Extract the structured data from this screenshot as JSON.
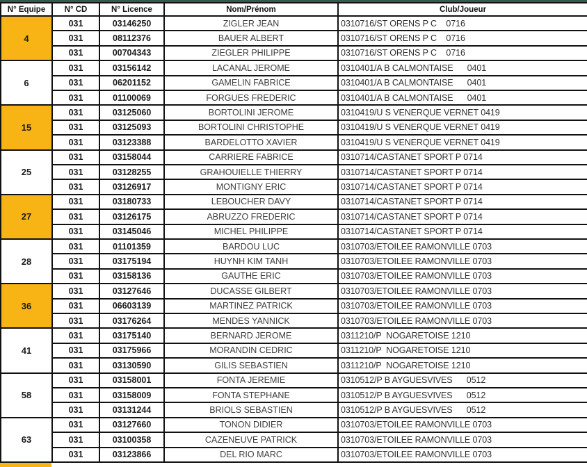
{
  "doc": {
    "type": "licence-team-roster-table",
    "top_bar_color": "#2F5D4C",
    "highlight_color": "#F8B414",
    "border_color": "#111111"
  },
  "columns": [
    {
      "key": "equipe",
      "label": "N° Equipe"
    },
    {
      "key": "cd",
      "label": "N° CD"
    },
    {
      "key": "licence",
      "label": "N° Licence"
    },
    {
      "key": "nom",
      "label": "Nom/Prénom"
    },
    {
      "key": "club",
      "label": "Club/Joueur"
    }
  ],
  "teams": [
    {
      "equipe": "4",
      "highlighted": true,
      "players": [
        {
          "cd": "031",
          "licence": "03146250",
          "nom": "ZIGLER JEAN",
          "club": "0310716/ST ORENS P C    0716"
        },
        {
          "cd": "031",
          "licence": "08112376",
          "nom": "BAUER ALBERT",
          "club": "0310716/ST ORENS P C    0716"
        },
        {
          "cd": "031",
          "licence": "00704343",
          "nom": "ZIEGLER PHILIPPE",
          "club": "0310716/ST ORENS P C    0716"
        }
      ]
    },
    {
      "equipe": "6",
      "highlighted": false,
      "players": [
        {
          "cd": "031",
          "licence": "03156142",
          "nom": "LACANAL JEROME",
          "club": "0310401/A B CALMONTAISE      0401"
        },
        {
          "cd": "031",
          "licence": "06201152",
          "nom": "GAMELIN FABRICE",
          "club": "0310401/A B CALMONTAISE      0401"
        },
        {
          "cd": "031",
          "licence": "01100069",
          "nom": "FORGUES FREDERIC",
          "club": "0310401/A B CALMONTAISE      0401"
        }
      ]
    },
    {
      "equipe": "15",
      "highlighted": true,
      "players": [
        {
          "cd": "031",
          "licence": "03125060",
          "nom": "BORTOLINI JEROME",
          "club": "0310419/U S VENERQUE VERNET 0419"
        },
        {
          "cd": "031",
          "licence": "03125093",
          "nom": "BORTOLINI CHRISTOPHE",
          "club": "0310419/U S VENERQUE VERNET 0419"
        },
        {
          "cd": "031",
          "licence": "03123388",
          "nom": "BARDELOTTO XAVIER",
          "club": "0310419/U S VENERQUE VERNET 0419"
        }
      ]
    },
    {
      "equipe": "25",
      "highlighted": false,
      "players": [
        {
          "cd": "031",
          "licence": "03158044",
          "nom": "CARRIERE FABRICE",
          "club": "0310714/CASTANET SPORT P 0714"
        },
        {
          "cd": "031",
          "licence": "03128255",
          "nom": "GRAHOUIELLE THIERRY",
          "club": "0310714/CASTANET SPORT P 0714"
        },
        {
          "cd": "031",
          "licence": "03126917",
          "nom": "MONTIGNY ERIC",
          "club": "0310714/CASTANET SPORT P 0714"
        }
      ]
    },
    {
      "equipe": "27",
      "highlighted": true,
      "players": [
        {
          "cd": "031",
          "licence": "03180733",
          "nom": "LEBOUCHER DAVY",
          "club": "0310714/CASTANET SPORT P 0714"
        },
        {
          "cd": "031",
          "licence": "03126175",
          "nom": "ABRUZZO FREDERIC",
          "club": "0310714/CASTANET SPORT P 0714"
        },
        {
          "cd": "031",
          "licence": "03145046",
          "nom": "MICHEL PHILIPPE",
          "club": "0310714/CASTANET SPORT P 0714"
        }
      ]
    },
    {
      "equipe": "28",
      "highlighted": false,
      "players": [
        {
          "cd": "031",
          "licence": "01101359",
          "nom": "BARDOU LUC",
          "club": "0310703/ETOILEE RAMONVILLE 0703"
        },
        {
          "cd": "031",
          "licence": "03175194",
          "nom": "HUYNH KIM TANH",
          "club": "0310703/ETOILEE RAMONVILLE 0703"
        },
        {
          "cd": "031",
          "licence": "03158136",
          "nom": "GAUTHE ERIC",
          "club": "0310703/ETOILEE RAMONVILLE 0703"
        }
      ]
    },
    {
      "equipe": "36",
      "highlighted": true,
      "players": [
        {
          "cd": "031",
          "licence": "03127646",
          "nom": "DUCASSE GILBERT",
          "club": "0310703/ETOILEE RAMONVILLE 0703"
        },
        {
          "cd": "031",
          "licence": "06603139",
          "nom": "MARTINEZ PATRICK",
          "club": "0310703/ETOILEE RAMONVILLE 0703"
        },
        {
          "cd": "031",
          "licence": "03176264",
          "nom": "MENDES YANNICK",
          "club": "0310703/ETOILEE RAMONVILLE 0703"
        }
      ]
    },
    {
      "equipe": "41",
      "highlighted": false,
      "players": [
        {
          "cd": "031",
          "licence": "03175140",
          "nom": "BERNARD JEROME",
          "club": "0311210/P  NOGARETOISE 1210"
        },
        {
          "cd": "031",
          "licence": "03175966",
          "nom": "MORANDIN CEDRIC",
          "club": "0311210/P  NOGARETOISE 1210"
        },
        {
          "cd": "031",
          "licence": "03130590",
          "nom": "GILIS SEBASTIEN",
          "club": "0311210/P  NOGARETOISE 1210"
        }
      ]
    },
    {
      "equipe": "58",
      "highlighted": false,
      "players": [
        {
          "cd": "031",
          "licence": "03158001",
          "nom": "FONTA JEREMIE",
          "club": "0310512/P B AYGUESVIVES      0512"
        },
        {
          "cd": "031",
          "licence": "03158009",
          "nom": "FONTA STEPHANE",
          "club": "0310512/P B AYGUESVIVES      0512"
        },
        {
          "cd": "031",
          "licence": "03131244",
          "nom": "BRIOLS SEBASTIEN",
          "club": "0310512/P B AYGUESVIVES      0512"
        }
      ]
    },
    {
      "equipe": "63",
      "highlighted": false,
      "players": [
        {
          "cd": "031",
          "licence": "03127660",
          "nom": "TONON DIDIER",
          "club": "0310703/ETOILEE RAMONVILLE 0703"
        },
        {
          "cd": "031",
          "licence": "03100358",
          "nom": "CAZENEUVE PATRICK",
          "club": "0310703/ETOILEE RAMONVILLE 0703"
        },
        {
          "cd": "031",
          "licence": "03123866",
          "nom": "DEL RIO MARC",
          "club": "0310703/ETOILEE RAMONVILLE 0703"
        }
      ]
    }
  ],
  "partial_next_team": {
    "highlighted": true
  }
}
